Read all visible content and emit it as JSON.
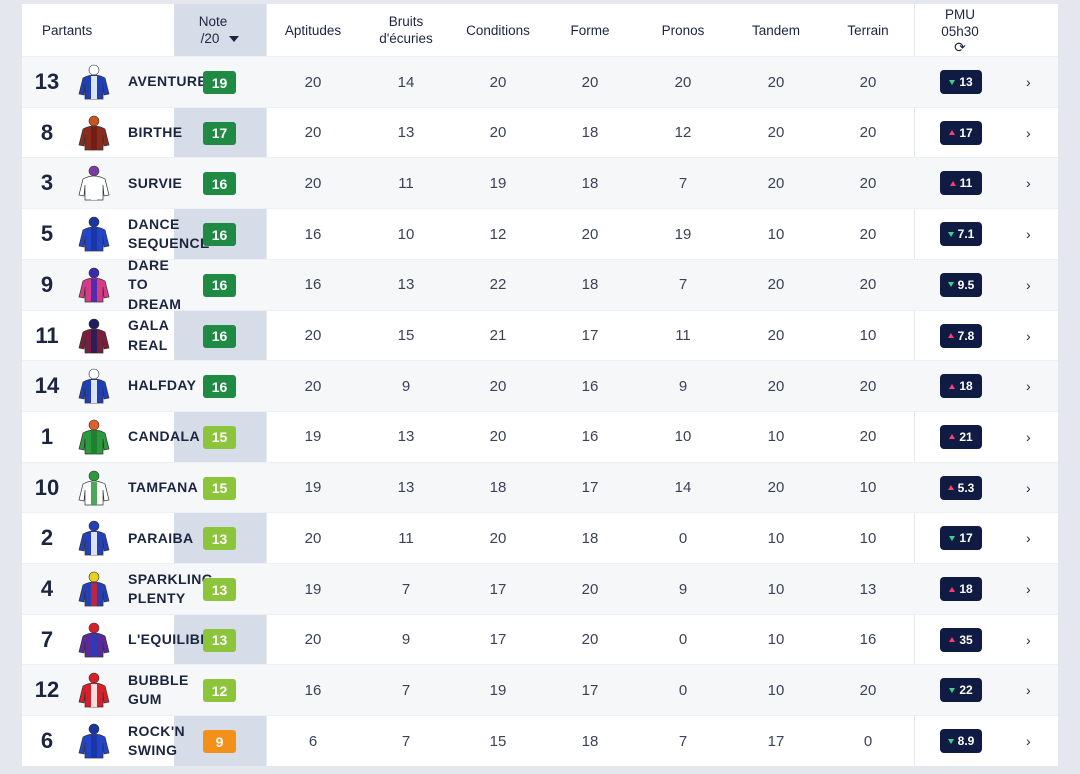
{
  "header": {
    "partants": "Partants",
    "note_line1": "Note",
    "note_line2": "/20",
    "aptitudes": "Aptitudes",
    "bruits_line1": "Bruits",
    "bruits_line2": "d'écuries",
    "conditions": "Conditions",
    "forme": "Forme",
    "pronos": "Pronos",
    "tandem": "Tandem",
    "terrain": "Terrain",
    "pmu_line1": "PMU",
    "pmu_line2": "05h30",
    "refresh_icon": "⟳"
  },
  "colors": {
    "green_dark": "#1e8a44",
    "green_light": "#8cc43c",
    "orange": "#f39019",
    "pmu_bg": "#0f1b42"
  },
  "rows": [
    {
      "num": "13",
      "name": "AVENTURE",
      "note": "19",
      "note_color": "#1e8a44",
      "aptitudes": "20",
      "bruits": "14",
      "conditions": "20",
      "forme": "20",
      "pronos": "20",
      "tandem": "20",
      "terrain": "20",
      "pmu": "13",
      "trend": "down",
      "jockey": "blue-white"
    },
    {
      "num": "8",
      "name": "BIRTHE",
      "note": "17",
      "note_color": "#1e8a44",
      "aptitudes": "20",
      "bruits": "13",
      "conditions": "20",
      "forme": "18",
      "pronos": "12",
      "tandem": "20",
      "terrain": "20",
      "pmu": "17",
      "trend": "up",
      "jockey": "brown"
    },
    {
      "num": "3",
      "name": "SURVIE",
      "note": "16",
      "note_color": "#1e8a44",
      "aptitudes": "20",
      "bruits": "11",
      "conditions": "19",
      "forme": "18",
      "pronos": "7",
      "tandem": "20",
      "terrain": "20",
      "pmu": "11",
      "trend": "up",
      "jockey": "white"
    },
    {
      "num": "5",
      "name": "DANCE\nSEQUENCE",
      "note": "16",
      "note_color": "#1e8a44",
      "aptitudes": "16",
      "bruits": "10",
      "conditions": "12",
      "forme": "20",
      "pronos": "19",
      "tandem": "10",
      "terrain": "20",
      "pmu": "7.1",
      "trend": "down",
      "jockey": "blue"
    },
    {
      "num": "9",
      "name": "DARE\nTO\nDREAM",
      "note": "16",
      "note_color": "#1e8a44",
      "aptitudes": "16",
      "bruits": "13",
      "conditions": "22",
      "forme": "18",
      "pronos": "7",
      "tandem": "20",
      "terrain": "20",
      "pmu": "9.5",
      "trend": "down",
      "jockey": "pink-blue"
    },
    {
      "num": "11",
      "name": "GALA\nREAL",
      "note": "16",
      "note_color": "#1e8a44",
      "aptitudes": "20",
      "bruits": "15",
      "conditions": "21",
      "forme": "17",
      "pronos": "11",
      "tandem": "20",
      "terrain": "10",
      "pmu": "7.8",
      "trend": "up",
      "jockey": "maroon-navy"
    },
    {
      "num": "14",
      "name": "HALFDAY",
      "note": "16",
      "note_color": "#1e8a44",
      "aptitudes": "20",
      "bruits": "9",
      "conditions": "20",
      "forme": "16",
      "pronos": "9",
      "tandem": "20",
      "terrain": "20",
      "pmu": "18",
      "trend": "up",
      "jockey": "blue-white"
    },
    {
      "num": "1",
      "name": "CANDALA",
      "note": "15",
      "note_color": "#8cc43c",
      "aptitudes": "19",
      "bruits": "13",
      "conditions": "20",
      "forme": "16",
      "pronos": "10",
      "tandem": "10",
      "terrain": "20",
      "pmu": "21",
      "trend": "up",
      "jockey": "green"
    },
    {
      "num": "10",
      "name": "TAMFANA",
      "note": "15",
      "note_color": "#8cc43c",
      "aptitudes": "19",
      "bruits": "13",
      "conditions": "18",
      "forme": "17",
      "pronos": "14",
      "tandem": "20",
      "terrain": "10",
      "pmu": "5.3",
      "trend": "up",
      "jockey": "white-green"
    },
    {
      "num": "2",
      "name": "PARAIBA",
      "note": "13",
      "note_color": "#8cc43c",
      "aptitudes": "20",
      "bruits": "11",
      "conditions": "20",
      "forme": "18",
      "pronos": "0",
      "tandem": "10",
      "terrain": "10",
      "pmu": "17",
      "trend": "down",
      "jockey": "blue-stars"
    },
    {
      "num": "4",
      "name": "SPARKLING\nPLENTY",
      "note": "13",
      "note_color": "#8cc43c",
      "aptitudes": "19",
      "bruits": "7",
      "conditions": "17",
      "forme": "20",
      "pronos": "9",
      "tandem": "10",
      "terrain": "13",
      "pmu": "18",
      "trend": "up",
      "jockey": "blue-red"
    },
    {
      "num": "7",
      "name": "L'EQUILIBRE",
      "note": "13",
      "note_color": "#8cc43c",
      "aptitudes": "20",
      "bruits": "9",
      "conditions": "17",
      "forme": "20",
      "pronos": "0",
      "tandem": "10",
      "terrain": "16",
      "pmu": "35",
      "trend": "up",
      "jockey": "purple"
    },
    {
      "num": "12",
      "name": "BUBBLE\nGUM",
      "note": "12",
      "note_color": "#8cc43c",
      "aptitudes": "16",
      "bruits": "7",
      "conditions": "19",
      "forme": "17",
      "pronos": "0",
      "tandem": "10",
      "terrain": "20",
      "pmu": "22",
      "trend": "down",
      "jockey": "red-white"
    },
    {
      "num": "6",
      "name": "ROCK'N\nSWING",
      "note": "9",
      "note_color": "#f39019",
      "aptitudes": "6",
      "bruits": "7",
      "conditions": "15",
      "forme": "18",
      "pronos": "7",
      "tandem": "17",
      "terrain": "0",
      "pmu": "8.9",
      "trend": "down",
      "jockey": "blue"
    }
  ]
}
